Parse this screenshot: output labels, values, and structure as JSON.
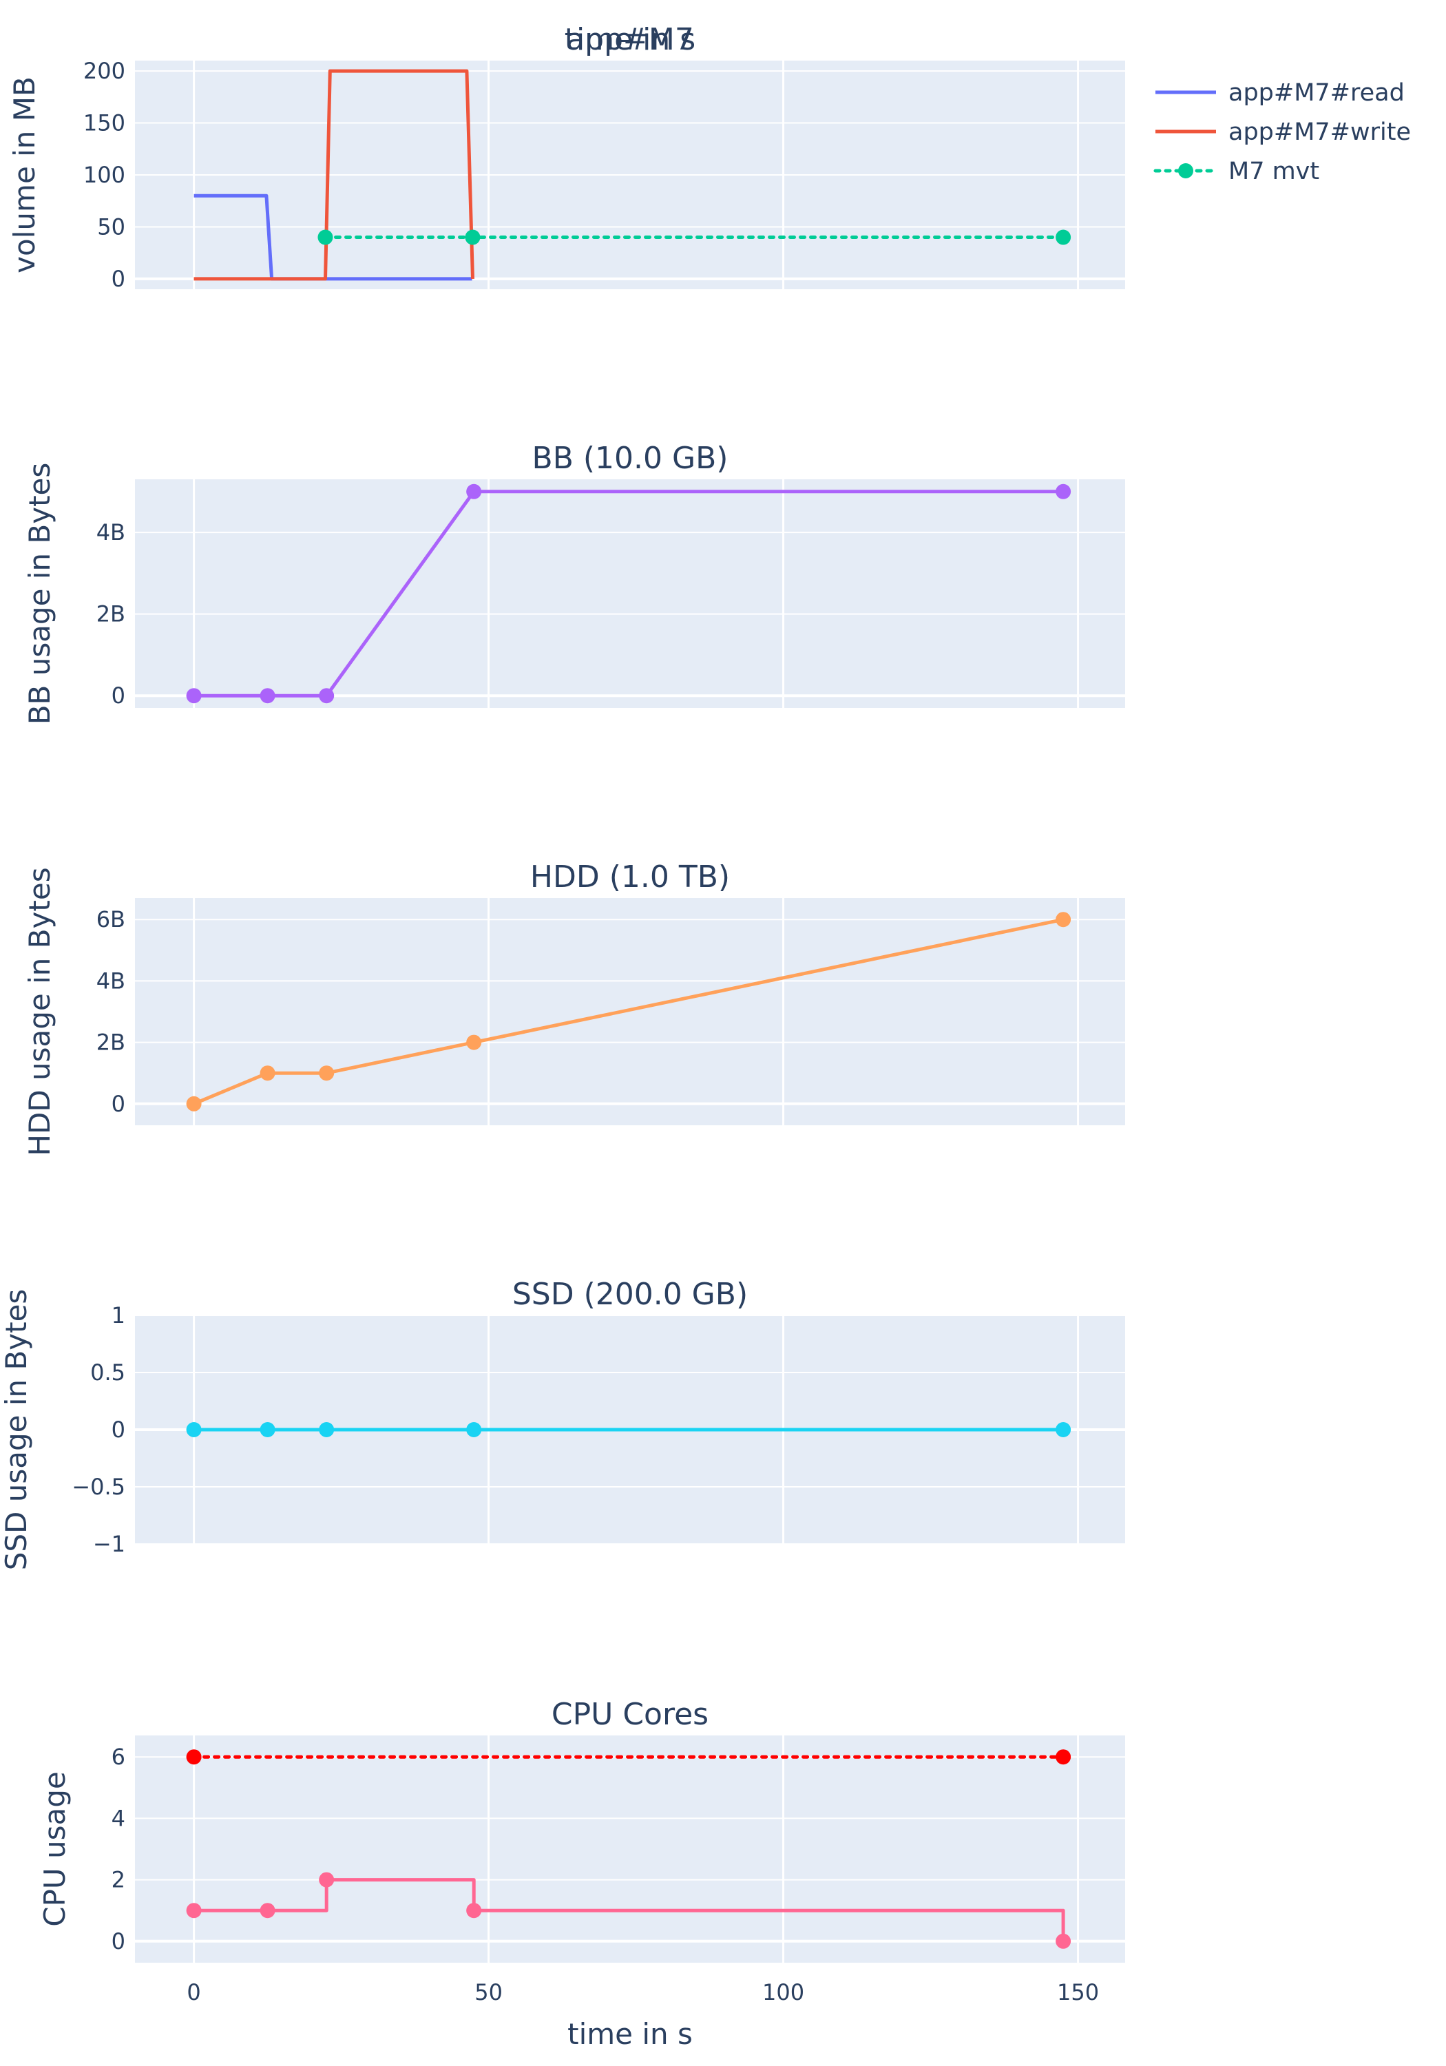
{
  "figure": {
    "xlabel": "time in s",
    "x_ticks": [
      0,
      50,
      100,
      150
    ],
    "x_range": [
      -10,
      158
    ],
    "plot_bg": "#e5ecf6",
    "grid_color": "#ffffff",
    "text_color": "#2a3f5f"
  },
  "chart_data": [
    {
      "type": "line",
      "title": "app#M7",
      "title_overlay": "time in s",
      "ylabel": "volume in MB",
      "ylim": [
        -10,
        210
      ],
      "y_ticks": [
        0,
        50,
        100,
        150,
        200
      ],
      "y_tick_labels": [
        "0",
        "50",
        "100",
        "150",
        "200"
      ],
      "legend": "top-right",
      "series": [
        {
          "name": "app#M7#read",
          "color": "#636efa",
          "dash": "solid",
          "markers": false,
          "x": [
            0,
            12.3,
            13.2,
            22.3,
            47.2
          ],
          "y": [
            80,
            80,
            0,
            0,
            0
          ]
        },
        {
          "name": "app#M7#write",
          "color": "#ef553b",
          "dash": "solid",
          "markers": false,
          "x": [
            0,
            22.3,
            23.1,
            46.3,
            47.3
          ],
          "y": [
            0,
            0,
            200,
            200,
            0
          ]
        },
        {
          "name": "M7 mvt",
          "color": "#00cc96",
          "dash": "dot",
          "markers": true,
          "x": [
            22.3,
            47.3,
            147.5
          ],
          "y": [
            40,
            40,
            40
          ]
        }
      ]
    },
    {
      "type": "line",
      "title": "BB (10.0 GB)",
      "ylabel": "BB usage in Bytes",
      "ylim": [
        -0.3,
        5.3
      ],
      "y_ticks": [
        0,
        2,
        4
      ],
      "y_tick_labels": [
        "0",
        "2B",
        "4B"
      ],
      "series": [
        {
          "color": "#ab63fa",
          "dash": "solid",
          "markers": true,
          "x": [
            0,
            12.5,
            22.5,
            47.5,
            147.5
          ],
          "y": [
            0,
            0,
            0,
            5,
            5
          ]
        }
      ]
    },
    {
      "type": "line",
      "title": "HDD (1.0 TB)",
      "ylabel": "HDD usage in Bytes",
      "ylim": [
        -0.7,
        6.7
      ],
      "y_ticks": [
        0,
        2,
        4,
        6
      ],
      "y_tick_labels": [
        "0",
        "2B",
        "4B",
        "6B"
      ],
      "series": [
        {
          "color": "#ffa15a",
          "dash": "solid",
          "markers": true,
          "x": [
            0,
            12.5,
            22.5,
            47.5,
            147.5
          ],
          "y": [
            0,
            1,
            1,
            2,
            6
          ]
        }
      ]
    },
    {
      "type": "line",
      "title": "SSD (200.0 GB)",
      "ylabel": "SSD usage in Bytes",
      "ylim": [
        -1,
        1
      ],
      "y_ticks": [
        -1,
        -0.5,
        0,
        0.5,
        1
      ],
      "y_tick_labels": [
        "−1",
        "−0.5",
        "0",
        "0.5",
        "1"
      ],
      "series": [
        {
          "color": "#19d3f3",
          "dash": "solid",
          "markers": true,
          "x": [
            0,
            12.5,
            22.5,
            47.5,
            147.5
          ],
          "y": [
            0,
            0,
            0,
            0,
            0
          ]
        }
      ]
    },
    {
      "type": "line",
      "title": "CPU Cores",
      "ylabel": "CPU usage",
      "ylim": [
        -0.7,
        6.7
      ],
      "y_ticks": [
        0,
        2,
        4,
        6
      ],
      "y_tick_labels": [
        "0",
        "2",
        "4",
        "6"
      ],
      "show_x_ticks": true,
      "series": [
        {
          "color": "#ff0000",
          "dash": "dot",
          "markers": true,
          "step": false,
          "x": [
            0,
            147.5
          ],
          "y": [
            6,
            6
          ]
        },
        {
          "color": "#ff6692",
          "dash": "solid",
          "markers": true,
          "step": true,
          "x": [
            0,
            12.5,
            22.5,
            47.5,
            147.5
          ],
          "y": [
            1,
            1,
            2,
            1,
            0
          ]
        }
      ]
    }
  ]
}
